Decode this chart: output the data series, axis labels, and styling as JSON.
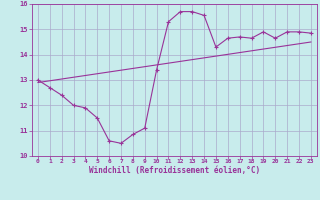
{
  "title": "",
  "xlabel": "Windchill (Refroidissement éolien,°C)",
  "ylabel": "",
  "bg_color": "#c8ecec",
  "line_color": "#993399",
  "grid_color": "#aaaacc",
  "xlim": [
    -0.5,
    23.5
  ],
  "ylim": [
    10,
    16
  ],
  "yticks": [
    10,
    11,
    12,
    13,
    14,
    15,
    16
  ],
  "xticks": [
    0,
    1,
    2,
    3,
    4,
    5,
    6,
    7,
    8,
    9,
    10,
    11,
    12,
    13,
    14,
    15,
    16,
    17,
    18,
    19,
    20,
    21,
    22,
    23
  ],
  "curve1_x": [
    0,
    1,
    2,
    3,
    4,
    5,
    6,
    7,
    8,
    9,
    10,
    11,
    12,
    13,
    14,
    15,
    16,
    17,
    18,
    19,
    20,
    21,
    22,
    23
  ],
  "curve1_y": [
    13.0,
    12.7,
    12.4,
    12.0,
    11.9,
    11.5,
    10.6,
    10.5,
    10.85,
    11.1,
    13.4,
    15.3,
    15.7,
    15.7,
    15.55,
    14.3,
    14.65,
    14.7,
    14.65,
    14.9,
    14.65,
    14.9,
    14.9,
    14.85
  ],
  "curve2_x": [
    0,
    23
  ],
  "curve2_y": [
    12.9,
    14.5
  ],
  "marker": "+"
}
